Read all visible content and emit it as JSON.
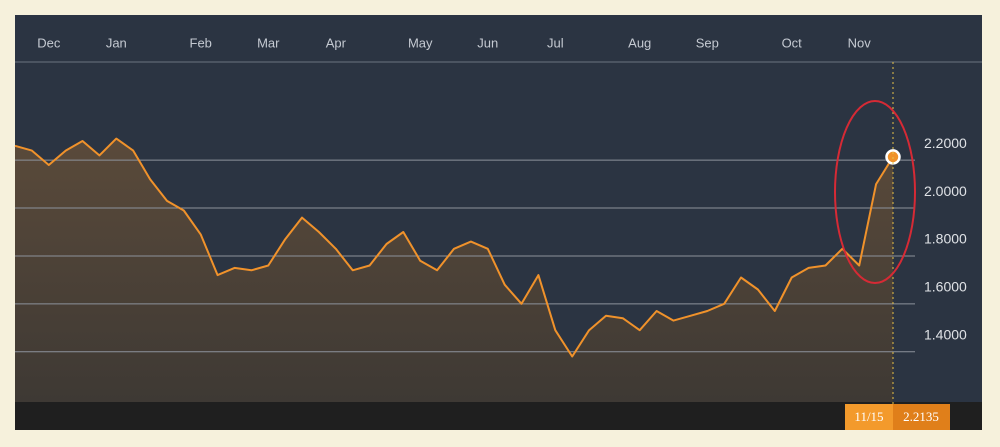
{
  "chart_data": {
    "type": "line",
    "categories": [
      null,
      null,
      "Dec",
      null,
      null,
      null,
      "Jan",
      null,
      null,
      null,
      null,
      "Feb",
      null,
      null,
      null,
      "Mar",
      null,
      null,
      null,
      "Apr",
      null,
      null,
      null,
      null,
      "May",
      null,
      null,
      null,
      "Jun",
      null,
      null,
      null,
      "Jul",
      null,
      null,
      null,
      null,
      "Aug",
      null,
      null,
      null,
      "Sep",
      null,
      null,
      null,
      null,
      "Oct",
      null,
      null,
      null,
      "Nov",
      null,
      null
    ],
    "values": [
      2.26,
      2.24,
      2.18,
      2.24,
      2.28,
      2.22,
      2.29,
      2.24,
      2.12,
      2.03,
      1.99,
      1.89,
      1.72,
      1.75,
      1.74,
      1.76,
      1.87,
      1.96,
      1.9,
      1.83,
      1.74,
      1.76,
      1.85,
      1.9,
      1.78,
      1.74,
      1.83,
      1.86,
      1.83,
      1.68,
      1.6,
      1.72,
      1.49,
      1.38,
      1.49,
      1.55,
      1.54,
      1.49,
      1.57,
      1.53,
      1.55,
      1.57,
      1.6,
      1.71,
      1.66,
      1.57,
      1.71,
      1.75,
      1.76,
      1.83,
      1.76,
      2.1,
      2.2135
    ],
    "color": "#f0922b",
    "ylim": [
      1.19,
      2.61
    ],
    "yticks": [
      {
        "value": 1.4,
        "label": "1.4000"
      },
      {
        "value": 1.6,
        "label": "1.6000"
      },
      {
        "value": 1.8,
        "label": "1.8000"
      },
      {
        "value": 2.0,
        "label": "2.0000"
      },
      {
        "value": 2.2,
        "label": "2.2000"
      }
    ],
    "grid": true,
    "annotation": "11/15"
  }
}
